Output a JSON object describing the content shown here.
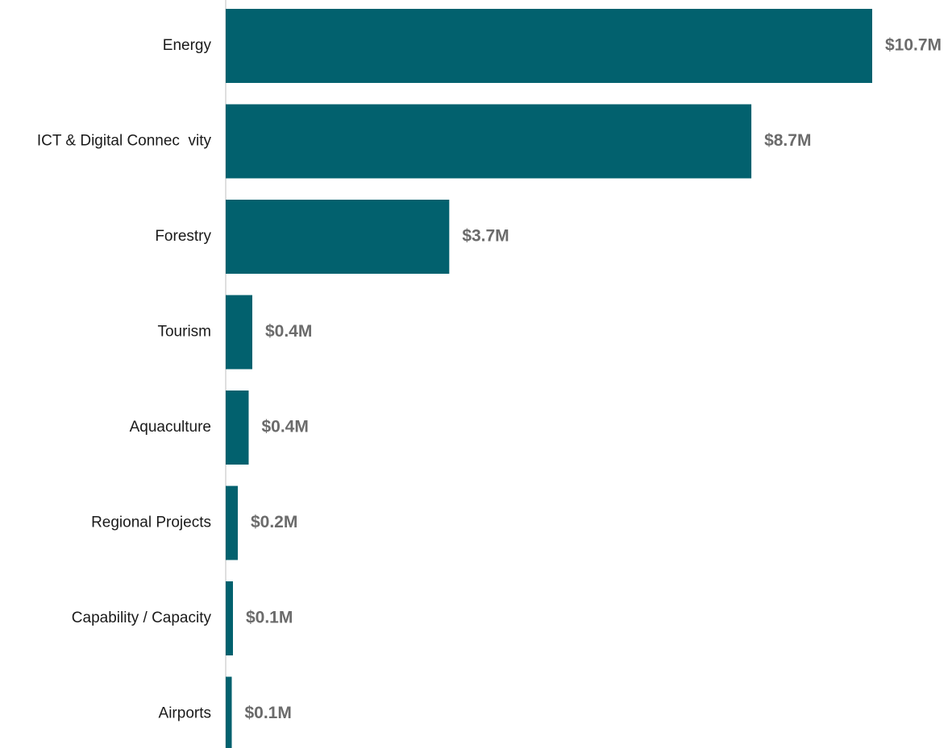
{
  "chart_data": {
    "type": "bar",
    "orientation": "horizontal",
    "title": "",
    "xlabel": "",
    "ylabel": "",
    "categories": [
      "Energy",
      "ICT & Digital Connec  vity",
      "Forestry",
      "Tourism",
      "Aquaculture",
      "Regional Projects",
      "Capability / Capacity",
      "Airports"
    ],
    "values": [
      10.7,
      8.7,
      3.7,
      0.44,
      0.38,
      0.2,
      0.12,
      0.1
    ],
    "value_labels": [
      "$10.7M",
      "$8.7M",
      "$3.7M",
      "$0.4M",
      "$0.4M",
      "$0.2M",
      "$0.1M",
      "$0.1M"
    ],
    "xlim": [
      0,
      10.7
    ],
    "grid": false,
    "legend": "none",
    "bar_color": "#02616e",
    "value_label_color": "#6b6b6b",
    "category_label_color": "#1a1a1a"
  }
}
